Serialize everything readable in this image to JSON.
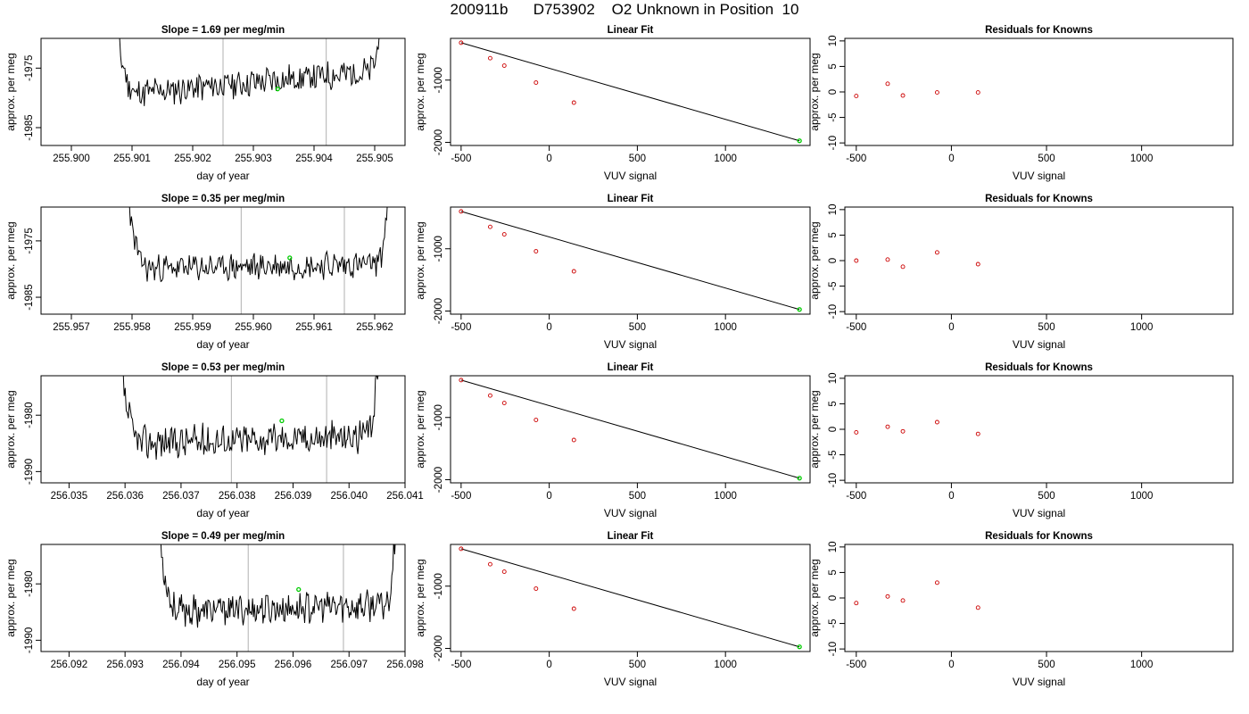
{
  "page_title": "200911b      D753902    O2 Unknown in Position  10",
  "chart_data": [
    {
      "type": "line",
      "title": "Slope =  1.69  per meg/min",
      "xlabel": "day of year",
      "ylabel": "approx. per meg",
      "xlim": [
        255.8995,
        255.9055
      ],
      "ylim": [
        -1988,
        -1970
      ],
      "xticks": [
        "255.900",
        "255.901",
        "255.902",
        "255.903",
        "255.904",
        "255.905"
      ],
      "yticks": [
        "-1985",
        "-1975"
      ],
      "series_range": [
        255.9006,
        255.9052
      ],
      "base": -1979.7,
      "drift": 1.69,
      "noise": 2.0,
      "seed": 11,
      "vlines": [
        255.9025,
        255.9042
      ],
      "marker": {
        "x": 255.9034,
        "y": -1978.5
      },
      "grid": false
    },
    {
      "type": "scatter",
      "title": "Linear Fit",
      "xlabel": "VUV signal",
      "ylabel": "approx. per meg",
      "xlim": [
        -560,
        1480
      ],
      "ylim": [
        -2050,
        -330
      ],
      "xticks": [
        "-500",
        "0",
        "500",
        "1000"
      ],
      "yticks": [
        "-2000",
        "-1000"
      ],
      "points": [
        {
          "x": -500,
          "y": -400
        },
        {
          "x": -335,
          "y": -648
        },
        {
          "x": -255,
          "y": -768
        },
        {
          "x": -75,
          "y": -1040
        },
        {
          "x": 140,
          "y": -1362
        }
      ],
      "unknown": {
        "x": 1420,
        "y": -1975
      },
      "fit": {
        "x0": -500,
        "y0": -400,
        "x1": 1420,
        "y1": -1975
      },
      "grid": false
    },
    {
      "type": "scatter",
      "title": "Residuals for Knowns",
      "xlabel": "VUV signal",
      "ylabel": "approx. per meg",
      "xlim": [
        -560,
        1480
      ],
      "ylim": [
        -10.5,
        10.5
      ],
      "xticks": [
        "-500",
        "0",
        "500",
        "1000"
      ],
      "yticks": [
        "-10",
        "-5",
        "0",
        "5",
        "10"
      ],
      "points": [
        {
          "x": -500,
          "y": -0.8
        },
        {
          "x": -335,
          "y": 1.6
        },
        {
          "x": -255,
          "y": -0.7
        },
        {
          "x": -75,
          "y": -0.1
        },
        {
          "x": 140,
          "y": -0.1
        }
      ],
      "grid": false
    },
    {
      "type": "line",
      "title": "Slope =  0.35  per meg/min",
      "xlabel": "day of year",
      "ylabel": "approx. per meg",
      "xlim": [
        255.9565,
        255.9625
      ],
      "ylim": [
        -1988,
        -1969
      ],
      "xticks": [
        "255.957",
        "255.958",
        "255.959",
        "255.960",
        "255.961",
        "255.962"
      ],
      "yticks": [
        "-1985",
        "-1975"
      ],
      "series_range": [
        255.9578,
        255.9623
      ],
      "base": -1980,
      "drift": 0.35,
      "noise": 1.9,
      "seed": 23,
      "vlines": [
        255.9598,
        255.9615
      ],
      "marker": {
        "x": 255.9606,
        "y": -1978
      },
      "grid": false
    },
    {
      "type": "scatter",
      "title": "Linear Fit",
      "xlabel": "VUV signal",
      "ylabel": "approx. per meg",
      "xlim": [
        -560,
        1480
      ],
      "ylim": [
        -2050,
        -330
      ],
      "xticks": [
        "-500",
        "0",
        "500",
        "1000"
      ],
      "yticks": [
        "-2000",
        "-1000"
      ],
      "points": [
        {
          "x": -500,
          "y": -400
        },
        {
          "x": -335,
          "y": -648
        },
        {
          "x": -255,
          "y": -768
        },
        {
          "x": -75,
          "y": -1040
        },
        {
          "x": 140,
          "y": -1362
        }
      ],
      "unknown": {
        "x": 1420,
        "y": -1975
      },
      "fit": {
        "x0": -500,
        "y0": -400,
        "x1": 1420,
        "y1": -1975
      },
      "grid": false
    },
    {
      "type": "scatter",
      "title": "Residuals for Knowns",
      "xlabel": "VUV signal",
      "ylabel": "approx. per meg",
      "xlim": [
        -560,
        1480
      ],
      "ylim": [
        -10.5,
        10.5
      ],
      "xticks": [
        "-500",
        "0",
        "500",
        "1000"
      ],
      "yticks": [
        "-10",
        "-5",
        "0",
        "5",
        "10"
      ],
      "points": [
        {
          "x": -500,
          "y": 0
        },
        {
          "x": -335,
          "y": 0.2
        },
        {
          "x": -255,
          "y": -1.2
        },
        {
          "x": -75,
          "y": 1.6
        },
        {
          "x": 140,
          "y": -0.7
        }
      ],
      "grid": false
    },
    {
      "type": "line",
      "title": "Slope =  0.53  per meg/min",
      "xlabel": "day of year",
      "ylabel": "approx. per meg",
      "xlim": [
        256.0345,
        256.041
      ],
      "ylim": [
        -1992,
        -1973
      ],
      "xticks": [
        "256.035",
        "256.036",
        "256.037",
        "256.038",
        "256.039",
        "256.040",
        "256.041"
      ],
      "yticks": [
        "-1990",
        "-1980"
      ],
      "series_range": [
        256.0358,
        256.0406
      ],
      "base": -1985,
      "drift": 0.53,
      "noise": 2.4,
      "seed": 37,
      "vlines": [
        256.0379,
        256.0396
      ],
      "marker": {
        "x": 256.0388,
        "y": -1981
      },
      "grid": false
    },
    {
      "type": "scatter",
      "title": "Linear Fit",
      "xlabel": "VUV signal",
      "ylabel": "approx. per meg",
      "xlim": [
        -560,
        1480
      ],
      "ylim": [
        -2050,
        -330
      ],
      "xticks": [
        "-500",
        "0",
        "500",
        "1000"
      ],
      "yticks": [
        "-2000",
        "-1000"
      ],
      "points": [
        {
          "x": -500,
          "y": -400
        },
        {
          "x": -335,
          "y": -648
        },
        {
          "x": -255,
          "y": -768
        },
        {
          "x": -75,
          "y": -1040
        },
        {
          "x": 140,
          "y": -1362
        }
      ],
      "unknown": {
        "x": 1420,
        "y": -1975
      },
      "fit": {
        "x0": -500,
        "y0": -400,
        "x1": 1420,
        "y1": -1975
      },
      "grid": false
    },
    {
      "type": "scatter",
      "title": "Residuals for Knowns",
      "xlabel": "VUV signal",
      "ylabel": "approx. per meg",
      "xlim": [
        -560,
        1480
      ],
      "ylim": [
        -10.5,
        10.5
      ],
      "xticks": [
        "-500",
        "0",
        "500",
        "1000"
      ],
      "yticks": [
        "-10",
        "-5",
        "0",
        "5",
        "10"
      ],
      "points": [
        {
          "x": -500,
          "y": -0.6
        },
        {
          "x": -335,
          "y": 0.5
        },
        {
          "x": -255,
          "y": -0.4
        },
        {
          "x": -75,
          "y": 1.4
        },
        {
          "x": 140,
          "y": -0.9
        }
      ],
      "grid": false
    },
    {
      "type": "line",
      "title": "Slope =  0.49  per meg/min",
      "xlabel": "day of year",
      "ylabel": "approx. per meg",
      "xlim": [
        256.0915,
        256.098
      ],
      "ylim": [
        -1992,
        -1973
      ],
      "xticks": [
        "256.092",
        "256.093",
        "256.094",
        "256.095",
        "256.096",
        "256.097",
        "256.098"
      ],
      "yticks": [
        "-1990",
        "-1980"
      ],
      "series_range": [
        256.0935,
        256.0979
      ],
      "base": -1985,
      "drift": 0.49,
      "noise": 2.2,
      "seed": 53,
      "vlines": [
        256.0952,
        256.0969
      ],
      "marker": {
        "x": 256.0961,
        "y": -1981
      },
      "grid": false
    },
    {
      "type": "scatter",
      "title": "Linear Fit",
      "xlabel": "VUV signal",
      "ylabel": "approx. per meg",
      "xlim": [
        -560,
        1480
      ],
      "ylim": [
        -2050,
        -330
      ],
      "xticks": [
        "-500",
        "0",
        "500",
        "1000"
      ],
      "yticks": [
        "-2000",
        "-1000"
      ],
      "points": [
        {
          "x": -500,
          "y": -400
        },
        {
          "x": -335,
          "y": -648
        },
        {
          "x": -255,
          "y": -768
        },
        {
          "x": -75,
          "y": -1040
        },
        {
          "x": 140,
          "y": -1362
        }
      ],
      "unknown": {
        "x": 1420,
        "y": -1975
      },
      "fit": {
        "x0": -500,
        "y0": -400,
        "x1": 1420,
        "y1": -1975
      },
      "grid": false
    },
    {
      "type": "scatter",
      "title": "Residuals for Knowns",
      "xlabel": "VUV signal",
      "ylabel": "approx. per meg",
      "xlim": [
        -560,
        1480
      ],
      "ylim": [
        -10.5,
        10.5
      ],
      "xticks": [
        "-500",
        "0",
        "500",
        "1000"
      ],
      "yticks": [
        "-10",
        "-5",
        "0",
        "5",
        "10"
      ],
      "points": [
        {
          "x": -500,
          "y": -1.0
        },
        {
          "x": -335,
          "y": 0.3
        },
        {
          "x": -255,
          "y": -0.5
        },
        {
          "x": -75,
          "y": 3.0
        },
        {
          "x": 140,
          "y": -1.9
        }
      ],
      "grid": false
    }
  ],
  "colors": {
    "line": "#000000",
    "marker": "#00cc00",
    "known_point": "#cc0000",
    "vline": "#bdbdbd",
    "axis": "#000000"
  }
}
